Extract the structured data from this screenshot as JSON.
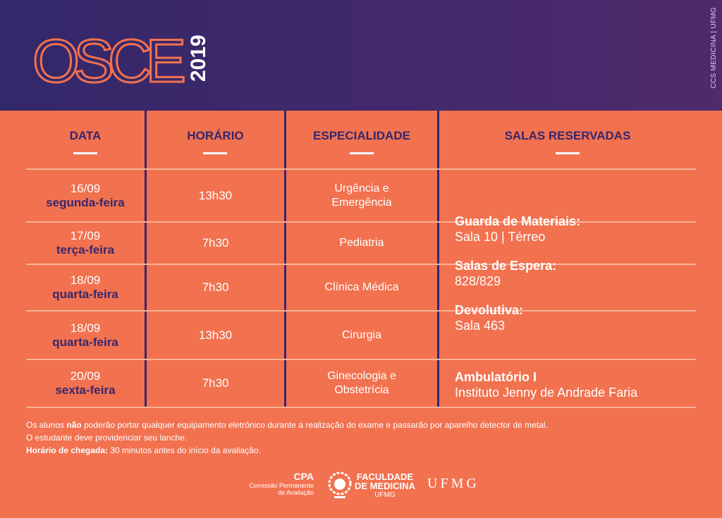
{
  "header": {
    "title": "OSCE",
    "year": "2019",
    "side": "CCS MEDICINA | UFMG"
  },
  "table": {
    "headers": [
      "DATA",
      "HORÁRIO",
      "ESPECIALIDADE",
      "SALAS RESERVADAS"
    ],
    "rows": [
      {
        "date": "16/09",
        "weekday": "segunda-feira",
        "time": "13h30",
        "specialty": [
          "Urgência e",
          "Emergência"
        ]
      },
      {
        "date": "17/09",
        "weekday": "terça-feira",
        "time": "7h30",
        "specialty": [
          "Pediatria"
        ]
      },
      {
        "date": "18/09",
        "weekday": "quarta-feira",
        "time": "7h30",
        "specialty": [
          "Clínica Médica"
        ]
      },
      {
        "date": "18/09",
        "weekday": "quarta-feira",
        "time": "13h30",
        "specialty": [
          "Cirurgia"
        ]
      },
      {
        "date": "20/09",
        "weekday": "sexta-feira",
        "time": "7h30",
        "specialty": [
          "Ginecologia e",
          "Obstetrícia"
        ]
      }
    ],
    "rooms": [
      {
        "label": "Guarda de Materiais:",
        "value": "Sala 10 | Térreo"
      },
      {
        "label": "Salas de Espera:",
        "value": "828/829"
      },
      {
        "label": "Devolutiva:",
        "value": "Sala 463"
      }
    ],
    "ambulatorio": {
      "label": "Ambulatório I",
      "value": "Instituto Jenny de Andrade Faria"
    }
  },
  "notes": {
    "line1": {
      "a": "Os alunos",
      "b": "não",
      "c": "poderão portar qualquer equipamento eletrônico durante a realização do exame e passarão por aparelho detector de metal."
    },
    "line2": "O estudante deve providenciar seu lanche.",
    "line3": {
      "a": "Horário de chegada:",
      "b": "30 minutos antes do início da avaliação."
    }
  },
  "logos": {
    "cpa": "CPA",
    "cpa_sub1": "Comissão Permanente",
    "cpa_sub2": "de Avaliação",
    "fac1": "FACULDADE",
    "fac2": "DE MEDICINA",
    "fac3": "UFMG",
    "ufmg": "UFMG"
  }
}
